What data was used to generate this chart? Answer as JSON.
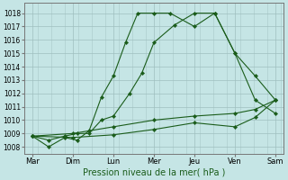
{
  "xlabel": "Pression niveau de la mer( hPa )",
  "background_color": "#c5e5e5",
  "grid_color": "#9fbfbf",
  "line_color": "#1a5c1a",
  "xlabels": [
    "Mar",
    "Dim",
    "Lun",
    "Mer",
    "Jeu",
    "Ven",
    "Sam"
  ],
  "x_positions": [
    0,
    1,
    2,
    3,
    4,
    5,
    6
  ],
  "ylim": [
    1007.5,
    1018.75
  ],
  "yticks": [
    1008,
    1009,
    1010,
    1011,
    1012,
    1013,
    1014,
    1015,
    1016,
    1017,
    1018
  ],
  "line1_x": [
    0,
    0.4,
    0.8,
    1.1,
    1.4,
    1.7,
    2.0,
    2.3,
    2.6,
    3.0,
    3.4,
    4.0,
    4.5,
    5.0,
    5.5,
    6.0
  ],
  "line1_y": [
    1008.8,
    1008.0,
    1008.7,
    1008.5,
    1009.2,
    1011.7,
    1013.3,
    1015.8,
    1018.0,
    1018.0,
    1018.0,
    1017.0,
    1018.0,
    1015.0,
    1013.3,
    1011.5
  ],
  "line2_x": [
    0,
    0.4,
    0.8,
    1.1,
    1.4,
    1.7,
    2.0,
    2.4,
    2.7,
    3.0,
    3.5,
    4.0,
    4.5,
    5.0,
    5.5,
    6.0
  ],
  "line2_y": [
    1008.8,
    1008.5,
    1008.8,
    1009.0,
    1009.0,
    1010.0,
    1010.3,
    1012.0,
    1013.5,
    1015.8,
    1017.1,
    1018.0,
    1018.0,
    1015.0,
    1011.5,
    1010.5
  ],
  "line3_x": [
    0,
    1.0,
    2.0,
    3.0,
    4.0,
    5.0,
    5.5,
    6.0
  ],
  "line3_y": [
    1008.8,
    1009.0,
    1009.5,
    1010.0,
    1010.3,
    1010.5,
    1010.8,
    1011.5
  ],
  "line4_x": [
    0,
    1.0,
    2.0,
    3.0,
    4.0,
    5.0,
    5.5,
    6.0
  ],
  "line4_y": [
    1008.8,
    1008.7,
    1008.9,
    1009.3,
    1009.8,
    1009.5,
    1010.2,
    1011.5
  ]
}
